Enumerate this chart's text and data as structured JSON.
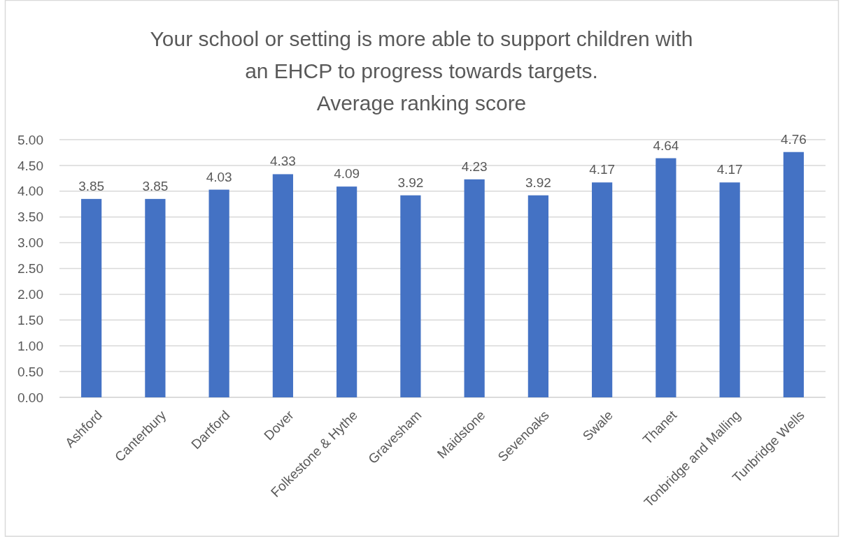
{
  "chart_data": {
    "type": "bar",
    "title": "Your school or setting is more able to support children with an EHCP to progress towards targets.",
    "subtitle": "Average ranking score",
    "categories": [
      "Ashford",
      "Canterbury",
      "Dartford",
      "Dover",
      "Folkestone & Hythe",
      "Gravesham",
      "Maidstone",
      "Sevenoaks",
      "Swale",
      "Thanet",
      "Tonbridge and Malling",
      "Tunbridge Wells"
    ],
    "values": [
      3.85,
      3.85,
      4.03,
      4.33,
      4.09,
      3.92,
      4.23,
      3.92,
      4.17,
      4.64,
      4.17,
      4.76
    ],
    "color": "#4472c4",
    "ylim": [
      0,
      5
    ],
    "yticks": [
      {
        "value": 0,
        "label": "0.00"
      },
      {
        "value": 0.5,
        "label": "0.50"
      },
      {
        "value": 1,
        "label": "1.00"
      },
      {
        "value": 1.5,
        "label": "1.50"
      },
      {
        "value": 2,
        "label": "2.00"
      },
      {
        "value": 2.5,
        "label": "2.50"
      },
      {
        "value": 3,
        "label": "3.00"
      },
      {
        "value": 3.5,
        "label": "3.50"
      },
      {
        "value": 4,
        "label": "4.00"
      },
      {
        "value": 4.5,
        "label": "4.50"
      },
      {
        "value": 5,
        "label": "5.00"
      }
    ],
    "grid": "y",
    "data_labels": true
  }
}
